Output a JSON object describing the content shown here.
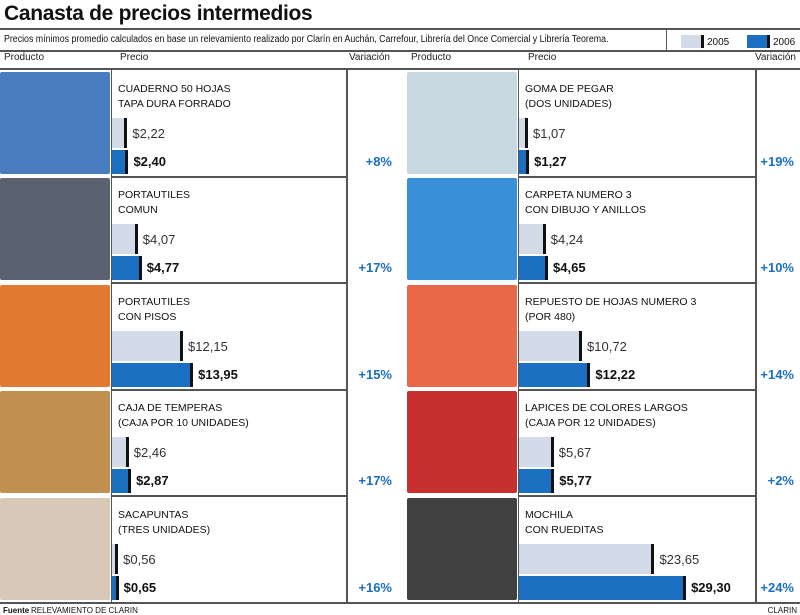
{
  "title": "Canasta de precios intermedios",
  "description": "Precios mínimos promedio calculados en base un relevamiento realizado por Clarín en Auchán, Carrefour, Librería del Once Comercial y Librería Teorema.",
  "legend": {
    "y2005": "2005",
    "y2006": "2006"
  },
  "columns": {
    "product": "Producto",
    "price": "Precio",
    "variation": "Variación"
  },
  "footer": {
    "source_label": "Fuente",
    "source": "RELEVAMIENTO DE CLARIN",
    "brand": "CLARIN"
  },
  "colors": {
    "2005": "#d3dbe8",
    "2006": "#1a6fc0"
  },
  "chart_data": {
    "type": "bar",
    "series": [
      {
        "name": "2005"
      },
      {
        "name": "2006"
      }
    ],
    "items": [
      {
        "name": "CUADERNO 50 HOJAS\nTAPA DURA FORRADO",
        "v2005": 2.22,
        "v2006": 2.4,
        "p2005": "$2,22",
        "p2006": "$2,40",
        "variation": "+8%",
        "photo": "#4a7cc0"
      },
      {
        "name": "PORTAUTILES\nCOMUN",
        "v2005": 4.07,
        "v2006": 4.77,
        "p2005": "$4,07",
        "p2006": "$4,77",
        "variation": "+17%",
        "photo": "#5a6270"
      },
      {
        "name": "PORTAUTILES\nCON PISOS",
        "v2005": 12.15,
        "v2006": 13.95,
        "p2005": "$12,15",
        "p2006": "$13,95",
        "variation": "+15%",
        "photo": "#e07a30"
      },
      {
        "name": "CAJA DE TEMPERAS\n(CAJA POR 10 UNIDADES)",
        "v2005": 2.46,
        "v2006": 2.87,
        "p2005": "$2,46",
        "p2006": "$2,87",
        "variation": "+17%",
        "photo": "#c09050"
      },
      {
        "name": "SACAPUNTAS\n(TRES UNIDADES)",
        "v2005": 0.56,
        "v2006": 0.65,
        "p2005": "$0,56",
        "p2006": "$0,65",
        "variation": "+16%",
        "photo": "#d8c8b8"
      },
      {
        "name": "GOMA DE PEGAR\n(DOS UNIDADES)",
        "v2005": 1.07,
        "v2006": 1.27,
        "p2005": "$1,07",
        "p2006": "$1,27",
        "variation": "+19%",
        "photo": "#c8d8e0"
      },
      {
        "name": "CARPETA NUMERO 3\nCON DIBUJO Y ANILLOS",
        "v2005": 4.24,
        "v2006": 4.65,
        "p2005": "$4,24",
        "p2006": "$4,65",
        "variation": "+10%",
        "photo": "#3a90d8"
      },
      {
        "name": "REPUESTO DE HOJAS NUMERO 3\n(POR 480)",
        "v2005": 10.72,
        "v2006": 12.22,
        "p2005": "$10,72",
        "p2006": "$12,22",
        "variation": "+14%",
        "photo": "#e86848"
      },
      {
        "name": "LAPICES DE COLORES LARGOS\n(CAJA POR 12 UNIDADES)",
        "v2005": 5.67,
        "v2006": 5.77,
        "p2005": "$5,67",
        "p2006": "$5,77",
        "variation": "+2%",
        "photo": "#c83030"
      },
      {
        "name": "MOCHILA\nCON RUEDITAS",
        "v2005": 23.65,
        "v2006": 29.3,
        "p2005": "$23,65",
        "p2006": "$29,30",
        "variation": "+24%",
        "photo": "#404040"
      }
    ]
  }
}
